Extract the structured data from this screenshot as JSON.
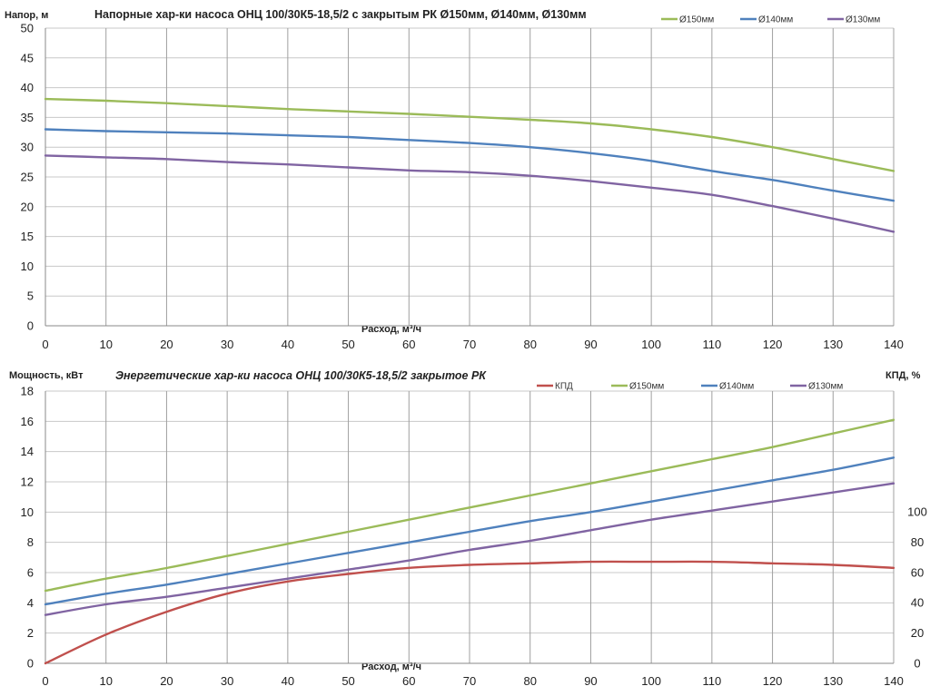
{
  "chart_data": [
    {
      "type": "line",
      "title": "Напорные хар-ки насоса ОНЦ 100/30К5-18,5/2 с закрытым РК Ø150мм, Ø140мм, Ø130мм",
      "ylabel": "Напор, м",
      "xlabel": "Расход, м³/ч",
      "xlim": [
        0,
        140
      ],
      "ylim": [
        0,
        50
      ],
      "xticks": [
        0,
        10,
        20,
        30,
        40,
        50,
        60,
        70,
        80,
        90,
        100,
        110,
        120,
        130,
        140
      ],
      "yticks": [
        0,
        5,
        10,
        15,
        20,
        25,
        30,
        35,
        40,
        45,
        50
      ],
      "grid": true,
      "legend_position": "top-right",
      "x": [
        0,
        10,
        20,
        30,
        40,
        50,
        60,
        70,
        80,
        90,
        100,
        110,
        120,
        130,
        140
      ],
      "series": [
        {
          "name": "Ø150мм",
          "color": "#9bbb59",
          "values": [
            38.1,
            37.8,
            37.4,
            36.9,
            36.4,
            36.0,
            35.6,
            35.1,
            34.6,
            34.0,
            33.0,
            31.7,
            30.0,
            28.0,
            26.0
          ]
        },
        {
          "name": "Ø140мм",
          "color": "#4f81bd",
          "values": [
            33.0,
            32.7,
            32.5,
            32.3,
            32.0,
            31.7,
            31.2,
            30.7,
            30.0,
            29.0,
            27.7,
            26.0,
            24.5,
            22.7,
            21.0
          ]
        },
        {
          "name": "Ø130мм",
          "color": "#8064a2",
          "values": [
            28.6,
            28.3,
            28.0,
            27.5,
            27.1,
            26.6,
            26.1,
            25.8,
            25.2,
            24.3,
            23.2,
            22.0,
            20.1,
            18.0,
            15.8
          ]
        }
      ]
    },
    {
      "type": "line",
      "title": "Энергетические хар-ки насоса ОНЦ 100/30К5-18,5/2 закрытое РК",
      "ylabel": "Мощность, кВт",
      "y2label": "КПД, %",
      "xlabel": "Расход, м³/ч",
      "xlim": [
        0,
        140
      ],
      "ylim": [
        0,
        18
      ],
      "y2lim": [
        0,
        180
      ],
      "xticks": [
        0,
        10,
        20,
        30,
        40,
        50,
        60,
        70,
        80,
        90,
        100,
        110,
        120,
        130,
        140
      ],
      "yticks": [
        0,
        2,
        4,
        6,
        8,
        10,
        12,
        14,
        16,
        18
      ],
      "y2ticks": [
        0,
        20,
        40,
        60,
        80,
        100
      ],
      "grid": true,
      "legend_position": "top",
      "x": [
        0,
        10,
        20,
        30,
        40,
        50,
        60,
        70,
        80,
        90,
        100,
        110,
        120,
        130,
        140
      ],
      "series": [
        {
          "name": "КПД",
          "color": "#c0504d",
          "axis": "right",
          "values": [
            0,
            19,
            34,
            46,
            54,
            59,
            63,
            65,
            66,
            67,
            67,
            67,
            66,
            65,
            63
          ]
        },
        {
          "name": "Ø150мм",
          "color": "#9bbb59",
          "axis": "left",
          "values": [
            4.8,
            5.6,
            6.3,
            7.1,
            7.9,
            8.7,
            9.5,
            10.3,
            11.1,
            11.9,
            12.7,
            13.5,
            14.3,
            15.2,
            16.1
          ]
        },
        {
          "name": "Ø140мм",
          "color": "#4f81bd",
          "axis": "left",
          "values": [
            3.9,
            4.6,
            5.2,
            5.9,
            6.6,
            7.3,
            8.0,
            8.7,
            9.4,
            10.0,
            10.7,
            11.4,
            12.1,
            12.8,
            13.6
          ]
        },
        {
          "name": "Ø130мм",
          "color": "#8064a2",
          "axis": "left",
          "values": [
            3.2,
            3.9,
            4.4,
            5.0,
            5.6,
            6.2,
            6.8,
            7.5,
            8.1,
            8.8,
            9.5,
            10.1,
            10.7,
            11.3,
            11.9
          ]
        }
      ]
    }
  ]
}
